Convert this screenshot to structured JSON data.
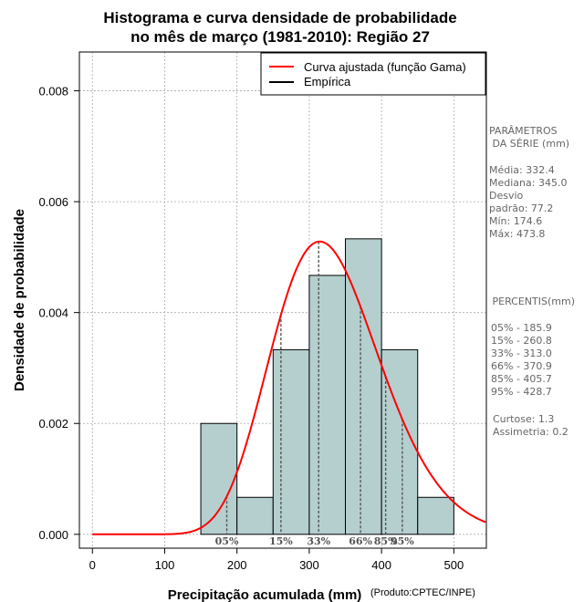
{
  "chart_data": {
    "type": "bar",
    "title_lines": [
      "Histograma e curva densidade de probabilidade",
      "no mês de março (1981-2010): Região 27"
    ],
    "xlabel": "Precipitação acumulada (mm)",
    "ylabel": "Densidade de probabilidade",
    "credit": "(Produto:CPTEC/INPE)",
    "xlim": [
      -18,
      545
    ],
    "ylim": [
      -0.00025,
      0.0087
    ],
    "x_ticks": [
      0,
      100,
      200,
      300,
      400,
      500
    ],
    "y_ticks": [
      0.0,
      0.002,
      0.004,
      0.006,
      0.008
    ],
    "y_tick_labels": [
      "0.000",
      "0.002",
      "0.004",
      "0.006",
      "0.008"
    ],
    "grid": true,
    "histogram": {
      "bins": [
        [
          150,
          200
        ],
        [
          200,
          250
        ],
        [
          250,
          300
        ],
        [
          300,
          350
        ],
        [
          350,
          400
        ],
        [
          400,
          450
        ],
        [
          450,
          500
        ]
      ],
      "density": [
        0.002,
        0.000667,
        0.00333,
        0.00467,
        0.00533,
        0.00333,
        0.000667
      ]
    },
    "gamma_fit": {
      "shape": 18.5,
      "scale": 17.97
    },
    "legend": {
      "placement": "top-right",
      "entries": [
        {
          "label": "Curva ajustada (função Gama)",
          "color": "#ff0000"
        },
        {
          "label": "Empírica",
          "color": "#000000"
        }
      ]
    },
    "percentiles": [
      {
        "label": "05%",
        "value": 185.9
      },
      {
        "label": "15%",
        "value": 260.8
      },
      {
        "label": "33%",
        "value": 313.0
      },
      {
        "label": "66%",
        "value": 370.9
      },
      {
        "label": "85%",
        "value": 405.7
      },
      {
        "label": "95%",
        "value": 428.7
      }
    ]
  },
  "side_panel": {
    "params_heading": [
      "PARÂMETROS",
      " DA SÉRIE (mm)"
    ],
    "params": [
      "Média:  332.4",
      "Mediana:  345.0",
      "Desvio",
      "padrão:  77.2",
      "Mín:  174.6",
      "Máx:  473.8"
    ],
    "percentis_heading": " PERCENTIS(mm)",
    "percentis": [
      "05% -  185.9",
      "15% -  260.8",
      "33% -  313.0",
      "66% -  370.9",
      "85% -  405.7",
      "95% -  428.7"
    ],
    "stats": [
      "Curtose:  1.3",
      "Assimetria:  0.2"
    ]
  },
  "colors": {
    "bar_fill": "#b5cfcf",
    "curve": "#ff0000",
    "grid": "#aaaaaa",
    "percentile_line": "#555555"
  }
}
